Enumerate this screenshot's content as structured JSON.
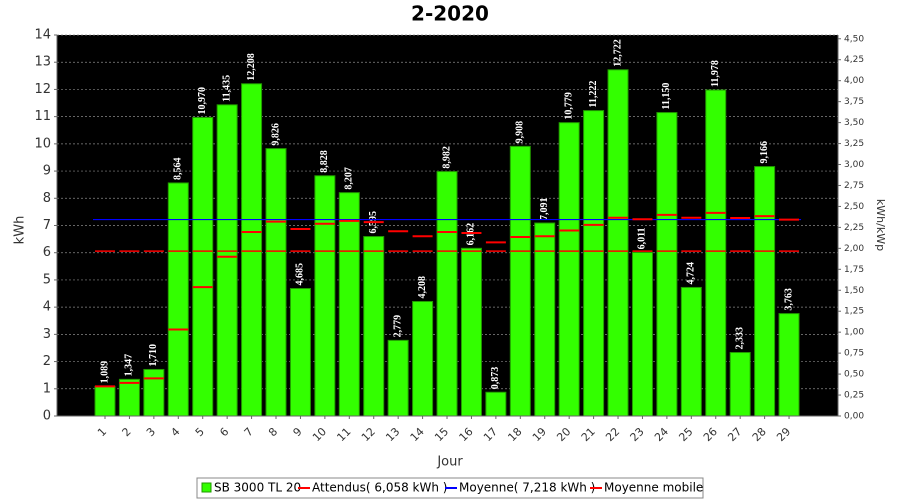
{
  "chart_data": {
    "type": "bar",
    "title": "2-2020",
    "x_label": "Jour",
    "y_label": "kWh",
    "y2_label": "kWh/kWp",
    "categories": [
      "1",
      "2",
      "3",
      "4",
      "5",
      "6",
      "7",
      "8",
      "9",
      "10",
      "11",
      "12",
      "13",
      "14",
      "15",
      "16",
      "17",
      "18",
      "19",
      "20",
      "21",
      "22",
      "23",
      "24",
      "25",
      "26",
      "27",
      "28",
      "29"
    ],
    "series": [
      {
        "name": "SB 3000 TL 20",
        "color": "#33ff00",
        "values": [
          1.089,
          1.347,
          1.71,
          8.564,
          10.97,
          11.435,
          12.208,
          9.826,
          4.685,
          8.828,
          8.207,
          6.595,
          2.779,
          4.208,
          8.982,
          6.162,
          0.873,
          9.908,
          7.091,
          10.779,
          11.222,
          12.722,
          6.011,
          11.15,
          4.724,
          11.978,
          2.333,
          9.166,
          3.763
        ],
        "value_labels": [
          "1,089",
          "1,347",
          "1,710",
          "8,564",
          "10,970",
          "11,435",
          "12,208",
          "9,826",
          "4,685",
          "8,828",
          "8,207",
          "6,595",
          "2,779",
          "4,208",
          "8,982",
          "6,162",
          "0,873",
          "9,908",
          "7,091",
          "10,779",
          "11,222",
          "12,722",
          "6,011",
          "11,150",
          "4,724",
          "11,978",
          "2,333",
          "9,166",
          "3,763"
        ]
      },
      {
        "name": "Attendus( 6,058 kWh )",
        "type": "hline",
        "color": "#ff0000",
        "value": 6.058
      },
      {
        "name": "Moyenne( 7,218 kWh )",
        "type": "hline",
        "color": "#0000ff",
        "value": 7.218
      },
      {
        "name": "Moyenne mobile",
        "type": "step",
        "color": "#ff0000",
        "values": [
          1.089,
          1.218,
          1.382,
          3.178,
          4.736,
          5.852,
          6.76,
          7.143,
          6.87,
          7.066,
          7.17,
          7.122,
          6.788,
          6.604,
          6.763,
          6.726,
          6.382,
          6.578,
          6.605,
          6.814,
          7.024,
          7.283,
          7.228,
          7.391,
          7.285,
          7.466,
          7.276,
          7.343,
          7.218
        ]
      }
    ],
    "ylim": [
      0,
      14
    ],
    "yticks": [
      0,
      1,
      2,
      3,
      4,
      5,
      6,
      7,
      8,
      9,
      10,
      11,
      12,
      13,
      14
    ],
    "y2lim": [
      0,
      4.545
    ],
    "y2ticks": [
      {
        "value": 0,
        "label": "0,00"
      },
      {
        "value": 0.25,
        "label": "0,25"
      },
      {
        "value": 0.5,
        "label": "0,50"
      },
      {
        "value": 0.75,
        "label": "0,75"
      },
      {
        "value": 1,
        "label": "1,00"
      },
      {
        "value": 1.25,
        "label": "1,25"
      },
      {
        "value": 1.5,
        "label": "1,50"
      },
      {
        "value": 1.75,
        "label": "1,75"
      },
      {
        "value": 2,
        "label": "2,00"
      },
      {
        "value": 2.25,
        "label": "2,25"
      },
      {
        "value": 2.5,
        "label": "2,50"
      },
      {
        "value": 2.75,
        "label": "2,75"
      },
      {
        "value": 3,
        "label": "3,00"
      },
      {
        "value": 3.25,
        "label": "3,25"
      },
      {
        "value": 3.5,
        "label": "3,50"
      },
      {
        "value": 3.75,
        "label": "3,75"
      },
      {
        "value": 4,
        "label": "4,00"
      },
      {
        "value": 4.25,
        "label": "4,25"
      },
      {
        "value": 4.5,
        "label": "4,50"
      }
    ],
    "grid": true
  }
}
